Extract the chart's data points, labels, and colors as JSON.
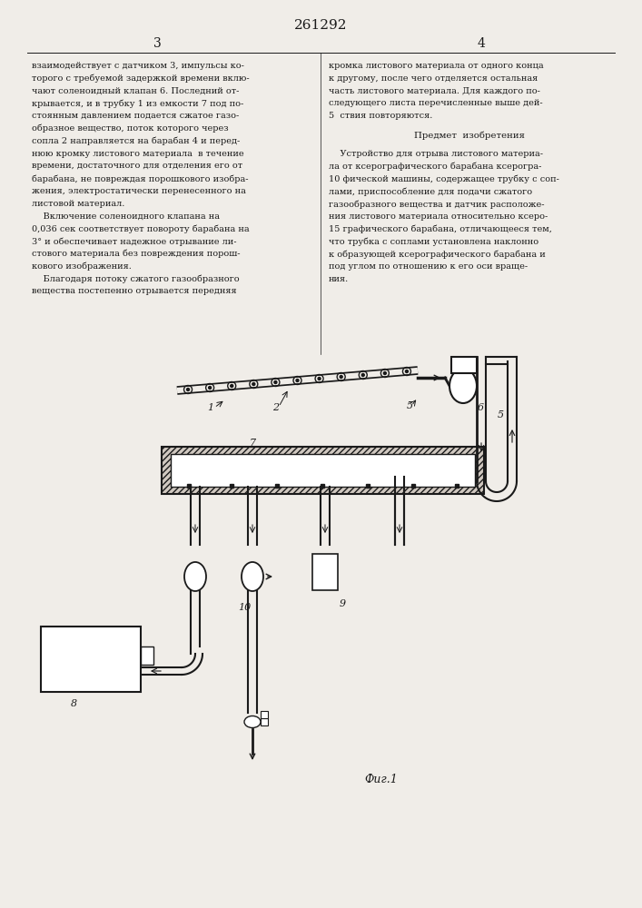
{
  "patent_number": "261292",
  "page_numbers": [
    "3",
    "4"
  ],
  "background_color": "#f0ede8",
  "text_color": "#1a1a1a",
  "left_column_text": [
    "взаимодействует с датчиком 3, импульсы ко-",
    "торого с требуемой задержкой времени вклю-",
    "чают соленоидный клапан 6. Последний от-",
    "крывается, и в трубку 1 из емкости 7 под по-",
    "стоянным давлением подается сжатое газо-",
    "образное вещество, поток которого через",
    "сопла 2 направляется на барабан 4 и перед-",
    "нюю кромку листового материала  в течение",
    "времени, достаточного для отделения его от",
    "барабана, не повреждая порошкового изобра-",
    "жения, электростатически перенесенного на",
    "листовой материал.",
    "    Включение соленоидного клапана на",
    "0,036 сек соответствует повороту барабана на",
    "3° и обеспечивает надежное отрывание ли-",
    "стового материала без повреждения порош-",
    "кового изображения.",
    "    Благодаря потоку сжатого газообразного",
    "вещества постепенно отрывается передняя"
  ],
  "right_column_text_part1": [
    "кромка листового материала от одного конца",
    "к другому, после чего отделяется остальная",
    "часть листового материала. Для каждого по-",
    "следующего листа перечисленные выше дей-",
    "5  ствия повторяются."
  ],
  "heading_predmet": "Предмет  изобретения",
  "right_column_text_part2": [
    "    Устройство для отрыва листового материа-",
    "ла от ксерографического барабана ксерогра-",
    "10 фической машины, содержащее трубку с соп-",
    "лами, приспособление для подачи сжатого",
    "газообразного вещества и датчик расположе-",
    "ния листового материала относительно ксеро-",
    "15 графического барабана, отличающееся тем,",
    "что трубка с соплами установлена наклонно",
    "к образующей ксерографического барабана и",
    "под углом по отношению к его оси враще-",
    "ния."
  ],
  "fig_caption": "Фиг.1"
}
